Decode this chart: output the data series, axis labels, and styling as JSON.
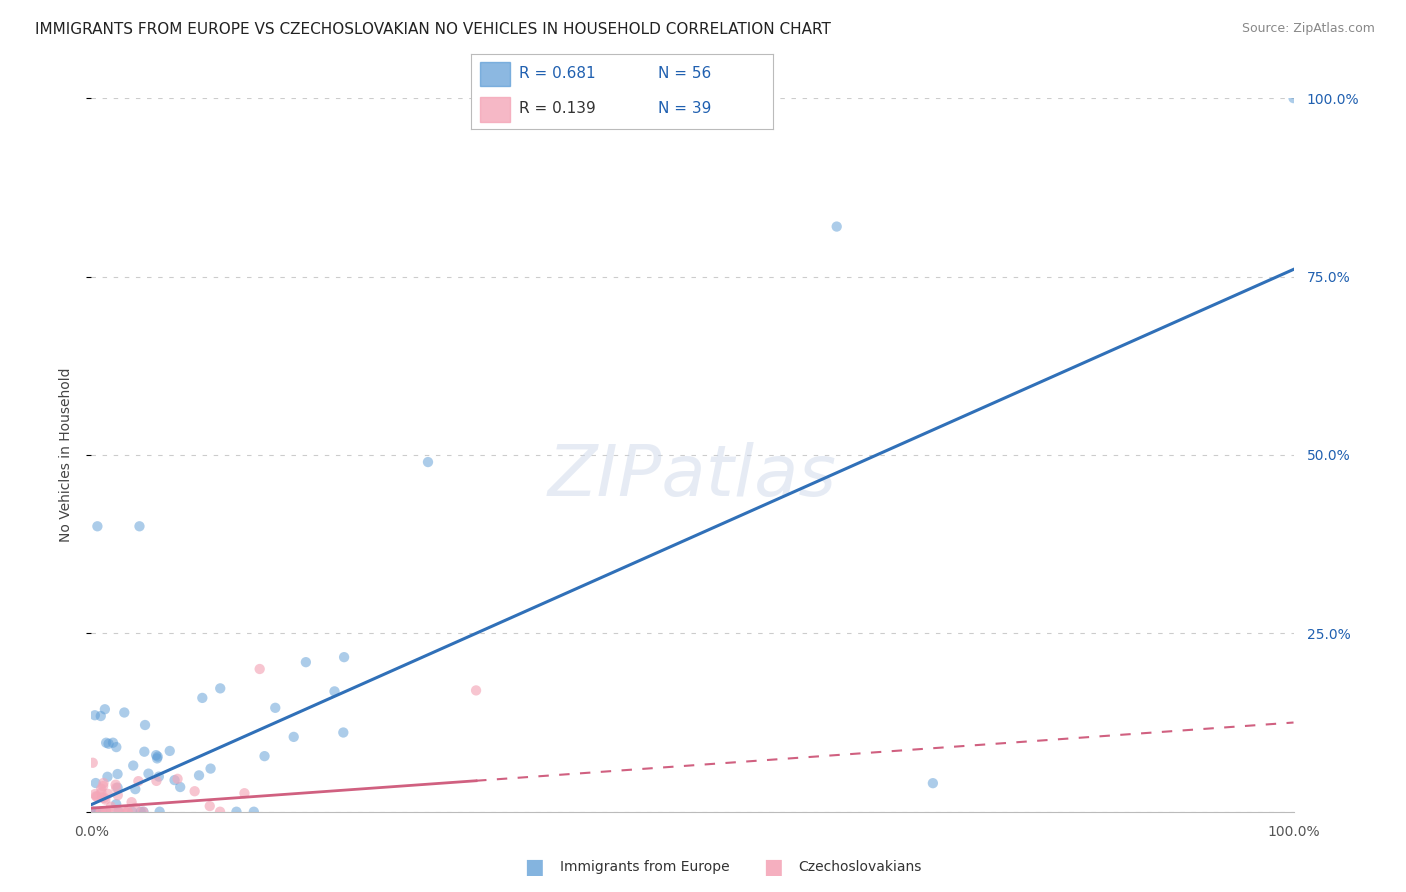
{
  "title": "IMMIGRANTS FROM EUROPE VS CZECHOSLOVAKIAN NO VEHICLES IN HOUSEHOLD CORRELATION CHART",
  "source": "Source: ZipAtlas.com",
  "ylabel": "No Vehicles in Household",
  "watermark": "ZIPatlas",
  "xlim": [
    0.0,
    1.0
  ],
  "ylim": [
    0.0,
    1.0
  ],
  "grid_color": "#cccccc",
  "background_color": "#ffffff",
  "title_fontsize": 11,
  "legend_R_color": "#2060b0",
  "legend_N_color": "#2060b0",
  "scatter_alpha": 0.5,
  "scatter_size": 55,
  "blue_color": "#5b9bd5",
  "pink_color": "#f4a6b8",
  "line_blue_color": "#3070b8",
  "line_pink_color": "#d06080",
  "blue_line_slope": 0.75,
  "blue_line_intercept": 0.01,
  "pink_line_slope": 0.12,
  "pink_line_intercept": 0.005,
  "blue_N": 56,
  "pink_N": 39
}
